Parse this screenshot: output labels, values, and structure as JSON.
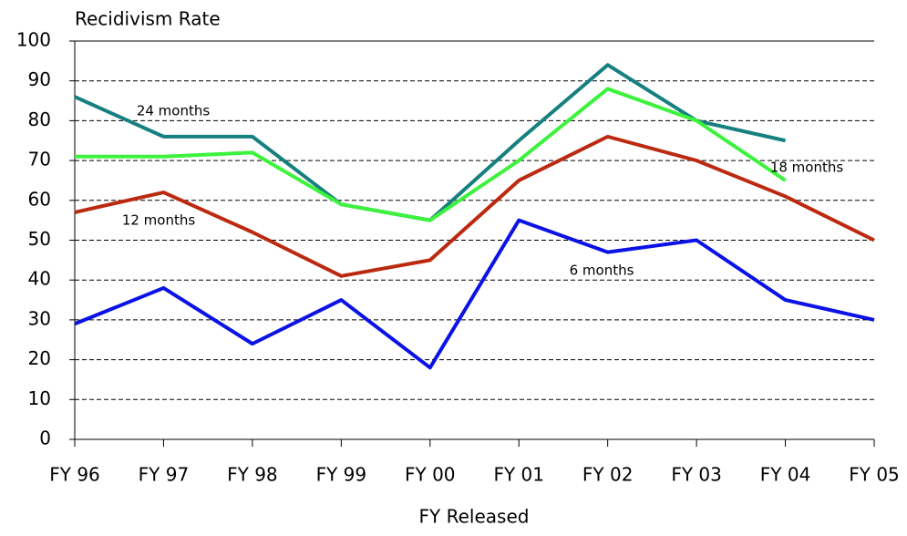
{
  "chart_data": {
    "type": "line",
    "title": "Recidivism Rate",
    "x_label": "FY Released",
    "categories": [
      "FY 96",
      "FY 97",
      "FY 98",
      "FY 99",
      "FY 00",
      "FY 01",
      "FY 02",
      "FY 03",
      "FY 04",
      "FY 05"
    ],
    "series": [
      {
        "name": "24 months",
        "color": "#15807f",
        "values": [
          86,
          76,
          76,
          59,
          55,
          75,
          94,
          80,
          75,
          null
        ]
      },
      {
        "name": "18 months",
        "color": "#3cf23c",
        "values": [
          71,
          71,
          72,
          59,
          55,
          70,
          88,
          80,
          65,
          null
        ]
      },
      {
        "name": "12 months",
        "color": "#bb2a10",
        "values": [
          57,
          62,
          52,
          41,
          45,
          65,
          76,
          70,
          61,
          50
        ]
      },
      {
        "name": "6 months",
        "color": "#0a12e6",
        "values": [
          29,
          38,
          24,
          35,
          18,
          55,
          47,
          50,
          35,
          30
        ]
      }
    ],
    "ylim": [
      0,
      100
    ],
    "yticks": [
      0,
      10,
      20,
      30,
      40,
      50,
      60,
      70,
      80,
      90,
      100
    ],
    "grid": true
  }
}
